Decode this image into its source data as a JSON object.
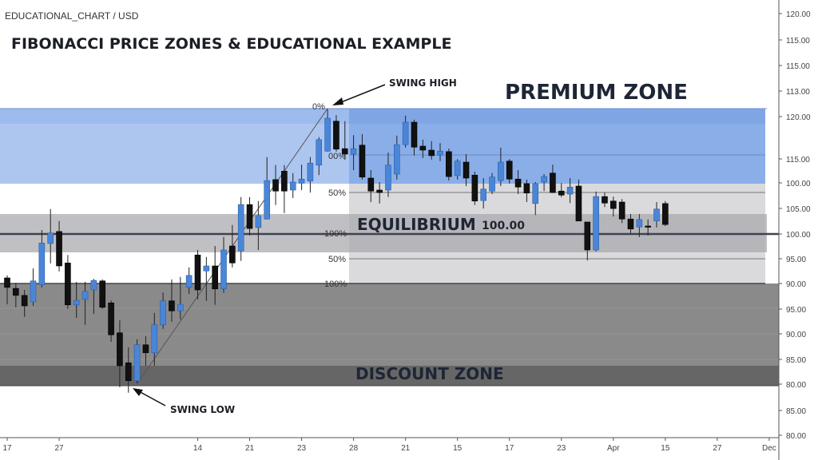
{
  "header": {
    "symbol": "EDUCATIONAL_CHART / USD",
    "title": "FIBONACCI PRICE ZONES & EDUCATIONAL EXAMPLE"
  },
  "annotations": {
    "swing_high": "SWING HIGH",
    "swing_low": "SWING LOW",
    "premium_zone": "PREMIUM ZONE",
    "equilibrium": "EQUILIBRIUM",
    "equilibrium_value": "100.00",
    "discount_zone": "DISCOUNT ZONE"
  },
  "fib_labels": [
    "0%",
    "00%",
    "50%",
    "100%",
    "50%",
    "100%"
  ],
  "colors": {
    "bull": "#4a86d8",
    "bear": "#111111",
    "premium": "#8aaee8",
    "premium_left": "#adc6f0",
    "equilibrium": "#b9b9bd",
    "discount": "#8a8a8a",
    "discount_dark": "#666666"
  },
  "chart_data": {
    "type": "candlestick",
    "title": "FIBONACCI PRICE ZONES & EDUCATIONAL EXAMPLE",
    "y_axis_labels": [
      "120.00",
      "115.00",
      "115.00",
      "113.00",
      "120.00",
      "115.00",
      "100.00",
      "105.00",
      "100.00",
      "95.00",
      "90.00",
      "95.00",
      "90.00",
      "85.00",
      "80.00",
      "85.00",
      "80.00"
    ],
    "x_ticks": [
      {
        "label": "17",
        "bar": 0
      },
      {
        "label": "27",
        "bar": 6
      },
      {
        "label": "14",
        "bar": 22
      },
      {
        "label": "21",
        "bar": 28
      },
      {
        "label": "23",
        "bar": 34
      },
      {
        "label": "28",
        "bar": 40
      },
      {
        "label": "21",
        "bar": 46
      },
      {
        "label": "15",
        "bar": 52
      },
      {
        "label": "17",
        "bar": 58
      },
      {
        "label": "23",
        "bar": 64
      },
      {
        "label": "Apr",
        "bar": 70
      },
      {
        "label": "15",
        "bar": 76
      },
      {
        "label": "27",
        "bar": 82
      },
      {
        "label": "Dec",
        "bar": 88
      }
    ],
    "ohlc": [
      [
        91.2,
        91.7,
        85.9,
        89.3
      ],
      [
        89.1,
        90.2,
        85.3,
        87.7
      ],
      [
        87.7,
        88.8,
        83.4,
        85.6
      ],
      [
        86.4,
        93.1,
        85.6,
        90.6
      ],
      [
        89.8,
        100.8,
        89.3,
        98.2
      ],
      [
        98.1,
        105.0,
        94.1,
        100.2
      ],
      [
        100.5,
        102.6,
        92.5,
        93.6
      ],
      [
        94.2,
        95.8,
        85.0,
        85.8
      ],
      [
        85.8,
        90.4,
        83.2,
        86.7
      ],
      [
        86.9,
        90.4,
        81.8,
        88.5
      ],
      [
        88.8,
        91.0,
        84.0,
        90.7
      ],
      [
        90.6,
        90.9,
        85.0,
        85.3
      ],
      [
        86.2,
        86.7,
        78.4,
        79.8
      ],
      [
        80.2,
        82.7,
        69.3,
        73.6
      ],
      [
        74.2,
        77.3,
        68.2,
        70.6
      ],
      [
        70.6,
        78.9,
        70.1,
        77.8
      ],
      [
        77.8,
        79.5,
        73.6,
        76.2
      ],
      [
        76.2,
        84.2,
        73.6,
        81.8
      ],
      [
        81.8,
        88.3,
        81.0,
        86.6
      ],
      [
        86.6,
        90.9,
        82.4,
        84.6
      ],
      [
        84.6,
        91.4,
        82.9,
        85.9
      ],
      [
        89.3,
        93.3,
        88.0,
        91.7
      ],
      [
        95.8,
        96.8,
        86.9,
        88.8
      ],
      [
        92.6,
        95.4,
        86.6,
        93.6
      ],
      [
        93.6,
        97.6,
        85.8,
        89.0
      ],
      [
        89.0,
        99.4,
        88.2,
        96.8
      ],
      [
        97.6,
        101.8,
        93.3,
        94.2
      ],
      [
        96.6,
        107.4,
        94.6,
        105.9
      ],
      [
        105.9,
        107.4,
        99.7,
        101.1
      ],
      [
        101.3,
        106.6,
        96.8,
        103.7
      ],
      [
        103.0,
        115.4,
        102.9,
        110.7
      ],
      [
        110.9,
        113.8,
        105.8,
        108.6
      ],
      [
        112.6,
        113.8,
        104.2,
        108.6
      ],
      [
        108.8,
        112.2,
        107.2,
        110.4
      ],
      [
        110.2,
        113.9,
        108.8,
        111.0
      ],
      [
        110.6,
        115.4,
        108.3,
        114.2
      ],
      [
        113.8,
        119.4,
        111.8,
        118.9
      ],
      [
        116.6,
        125.0,
        116.5,
        123.2
      ],
      [
        122.6,
        123.8,
        116.5,
        117.0
      ],
      [
        117.1,
        122.6,
        114.9,
        116.0
      ],
      [
        116.0,
        119.8,
        112.8,
        117.1
      ],
      [
        117.8,
        120.0,
        110.9,
        111.4
      ],
      [
        111.2,
        112.8,
        106.4,
        108.6
      ],
      [
        108.8,
        110.4,
        106.1,
        108.3
      ],
      [
        108.8,
        116.3,
        107.4,
        113.8
      ],
      [
        112.0,
        119.7,
        110.9,
        117.9
      ],
      [
        117.9,
        123.7,
        117.3,
        122.4
      ],
      [
        122.4,
        122.9,
        115.7,
        117.4
      ],
      [
        117.6,
        118.9,
        115.2,
        116.8
      ],
      [
        116.8,
        118.6,
        114.9,
        115.7
      ],
      [
        115.8,
        118.2,
        114.6,
        116.6
      ],
      [
        116.5,
        117.1,
        110.7,
        111.5
      ],
      [
        111.7,
        115.0,
        110.9,
        114.6
      ],
      [
        114.4,
        116.0,
        109.6,
        111.2
      ],
      [
        111.8,
        112.5,
        105.8,
        106.6
      ],
      [
        106.7,
        111.2,
        105.1,
        109.0
      ],
      [
        108.6,
        112.2,
        108.0,
        111.4
      ],
      [
        110.7,
        117.3,
        109.6,
        114.4
      ],
      [
        114.6,
        115.0,
        110.1,
        111.0
      ],
      [
        111.0,
        112.8,
        108.0,
        109.4
      ],
      [
        110.1,
        110.9,
        106.4,
        108.2
      ],
      [
        106.1,
        110.4,
        103.8,
        110.1
      ],
      [
        110.4,
        112.0,
        108.6,
        111.5
      ],
      [
        112.2,
        113.9,
        108.2,
        108.3
      ],
      [
        108.6,
        110.2,
        107.4,
        107.8
      ],
      [
        108.0,
        111.2,
        106.2,
        109.4
      ],
      [
        109.6,
        110.9,
        102.6,
        102.6
      ],
      [
        102.4,
        102.4,
        94.7,
        96.8
      ],
      [
        96.8,
        108.5,
        96.5,
        107.5
      ],
      [
        107.5,
        108.3,
        105.4,
        106.2
      ],
      [
        106.6,
        107.5,
        103.5,
        105.1
      ],
      [
        106.4,
        107.0,
        102.2,
        103.0
      ],
      [
        103.0,
        104.0,
        100.2,
        101.0
      ],
      [
        101.4,
        104.0,
        99.4,
        102.9
      ],
      [
        101.6,
        102.9,
        99.7,
        101.4
      ],
      [
        102.6,
        106.4,
        101.3,
        105.0
      ],
      [
        106.1,
        106.6,
        101.6,
        101.9
      ]
    ],
    "swing_low": 68.2,
    "swing_high": 125.0,
    "equilibrium": 100.0,
    "grid": false
  }
}
